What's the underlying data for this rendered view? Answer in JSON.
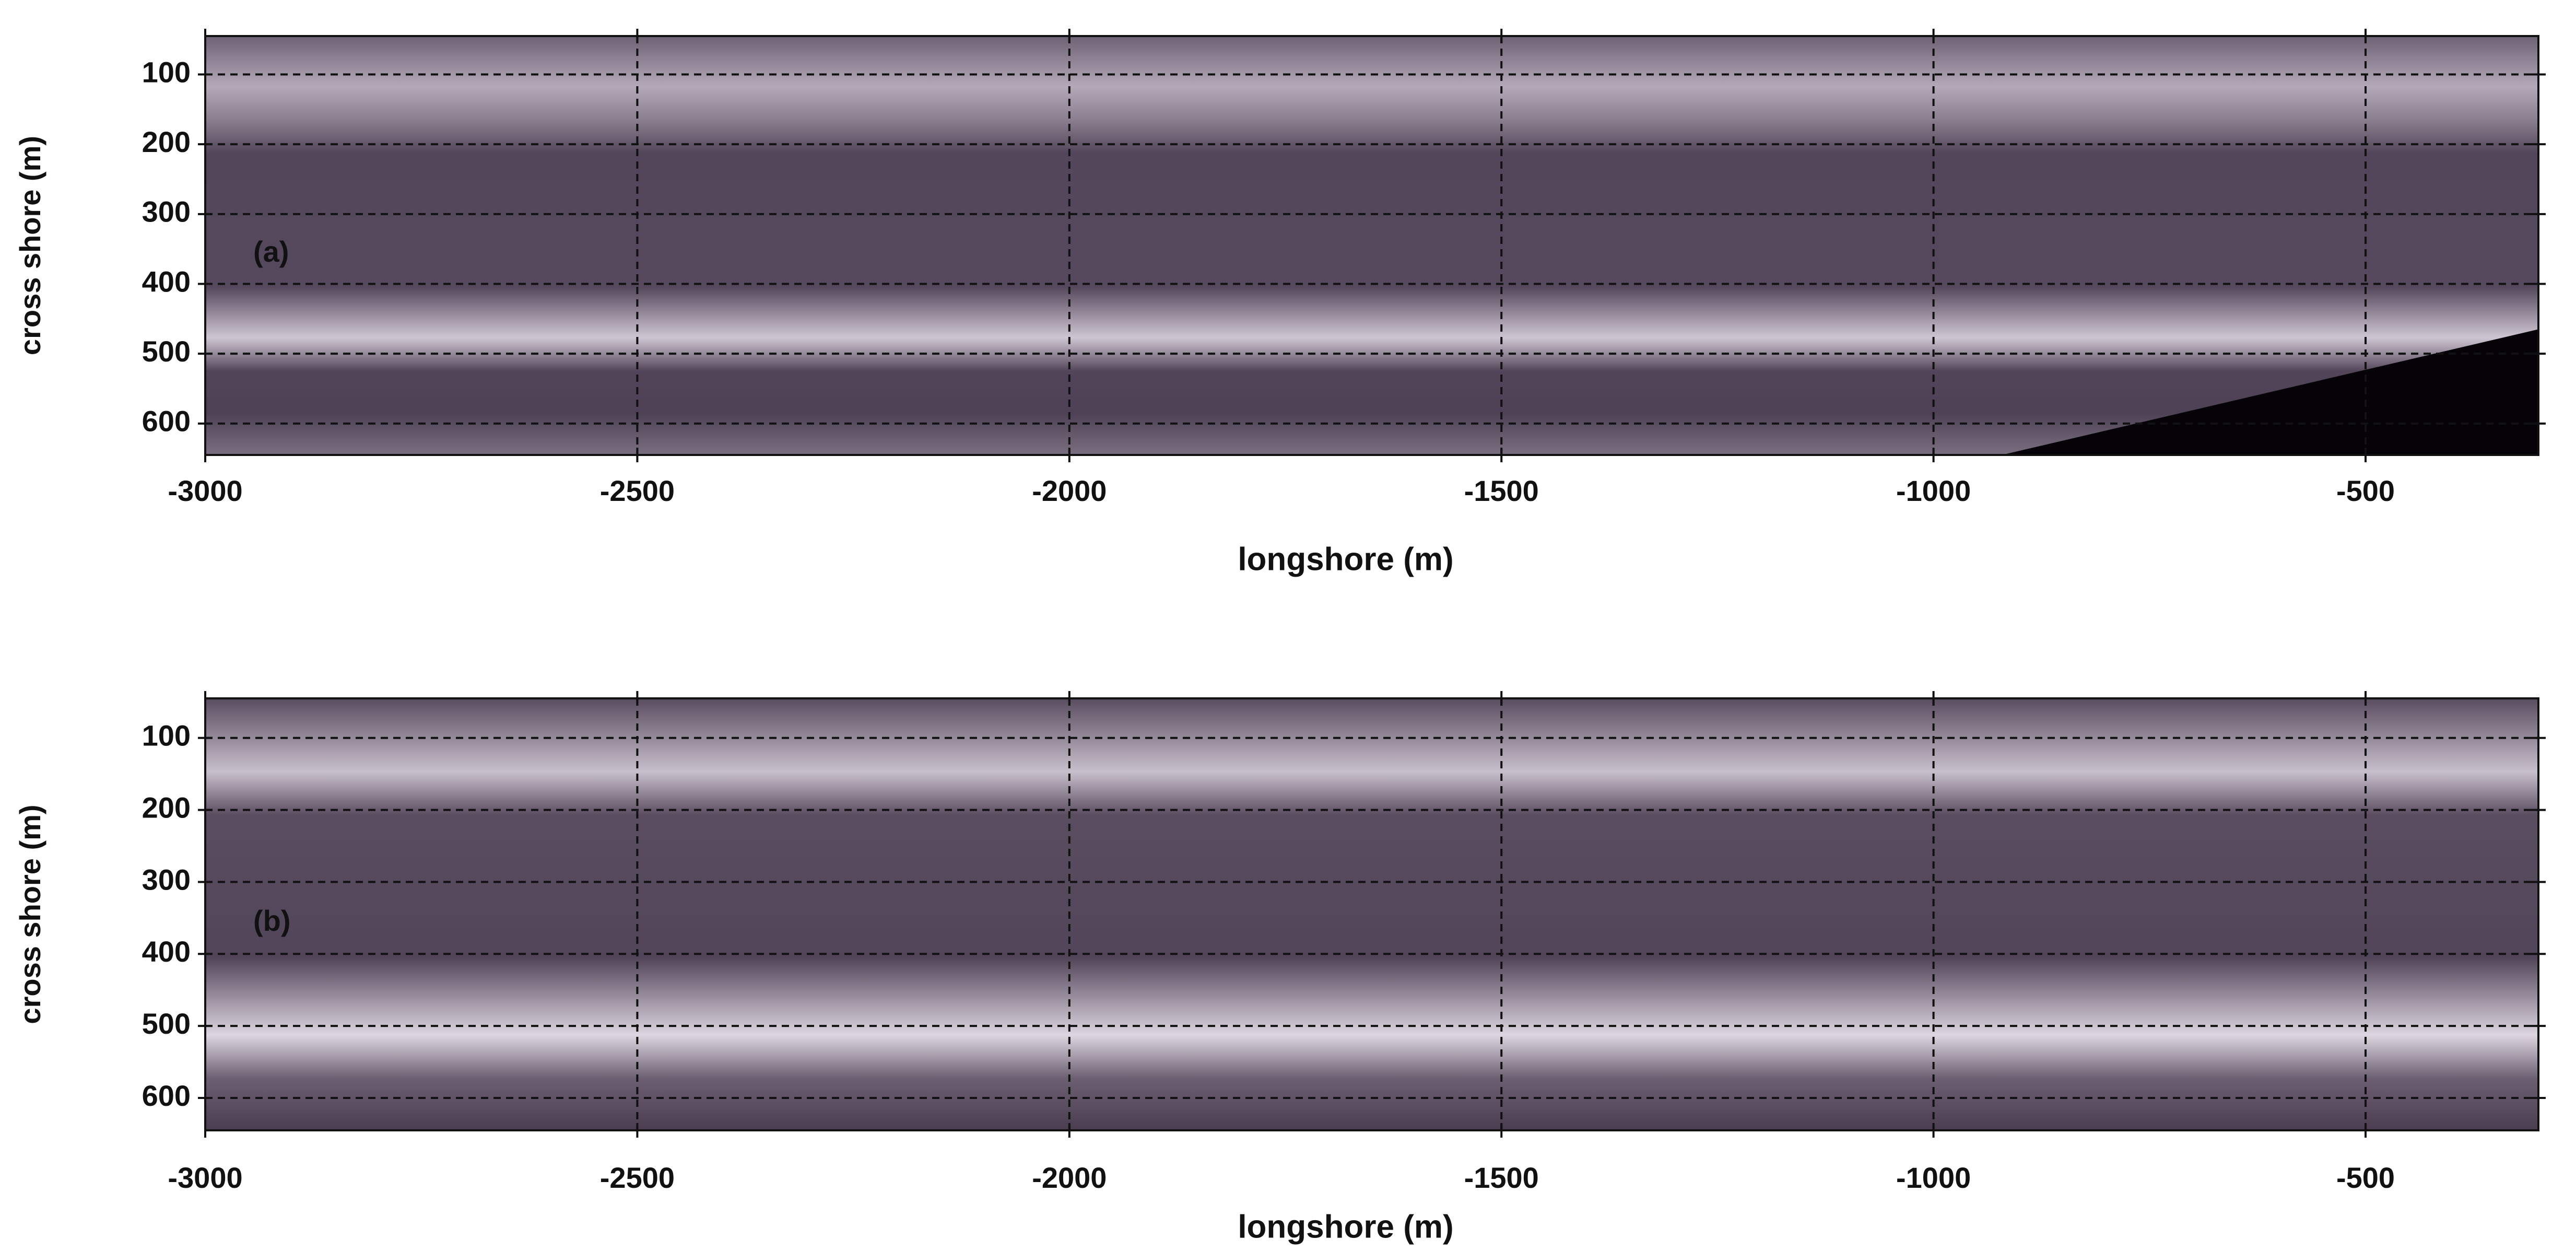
{
  "chart_data": [
    {
      "type": "heatmap",
      "annotation": "(a)",
      "xlabel": "longshore (m)",
      "ylabel": "cross shore (m)",
      "xlim": [
        -3000,
        -300
      ],
      "xticks": [
        -3000,
        -2500,
        -2000,
        -1500,
        -1000,
        -500
      ],
      "ylim": [
        645,
        45
      ],
      "yticks": [
        100,
        200,
        300,
        400,
        500,
        600
      ],
      "grid": true
    },
    {
      "type": "heatmap",
      "annotation": "(b)",
      "xlabel": "longshore (m)",
      "ylabel": "cross shore (m)",
      "xlim": [
        -3000,
        -300
      ],
      "xticks": [
        -3000,
        -2500,
        -2000,
        -1500,
        -1000,
        -500
      ],
      "ylim": [
        645,
        45
      ],
      "yticks": [
        100,
        200,
        300,
        400,
        500,
        600
      ],
      "grid": true
    }
  ]
}
